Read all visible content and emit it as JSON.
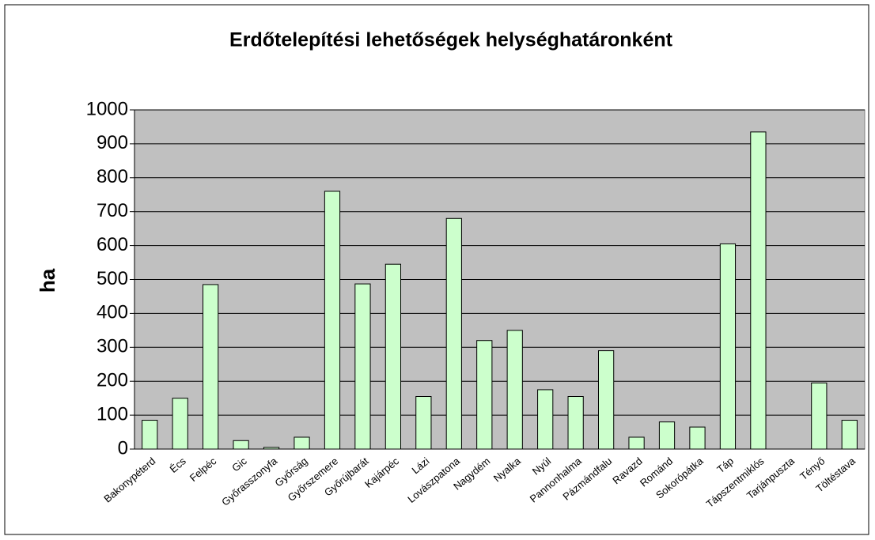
{
  "chart_data": {
    "type": "bar",
    "title": "Erdőtelepítési lehetőségek helységhatáronként",
    "y_label": "ha",
    "categories": [
      "Bakonypéterd",
      "Écs",
      "Felpéc",
      "Gic",
      "Győrasszonyfa",
      "Győrság",
      "Győrszemere",
      "Győrújbarát",
      "Kajárpéc",
      "Lázi",
      "Lovászpatona",
      "Nagydém",
      "Nyalka",
      "Nyúl",
      "Pannonhalma",
      "Pázmándfalu",
      "Ravazd",
      "Románd",
      "Sokorópátka",
      "Táp",
      "Tápszentmiklós",
      "Tarjánpuszta",
      "Tényő",
      "Töltéstava"
    ],
    "values": [
      85,
      150,
      485,
      25,
      5,
      35,
      760,
      487,
      545,
      155,
      680,
      320,
      350,
      175,
      155,
      290,
      35,
      80,
      65,
      605,
      935,
      0,
      195,
      85
    ],
    "color": "#ccffcc",
    "plot_background": "#c0c0c0",
    "ylim": [
      0,
      1000
    ],
    "yticks": [
      0,
      100,
      200,
      300,
      400,
      500,
      600,
      700,
      800,
      900,
      1000
    ],
    "grid": true
  }
}
